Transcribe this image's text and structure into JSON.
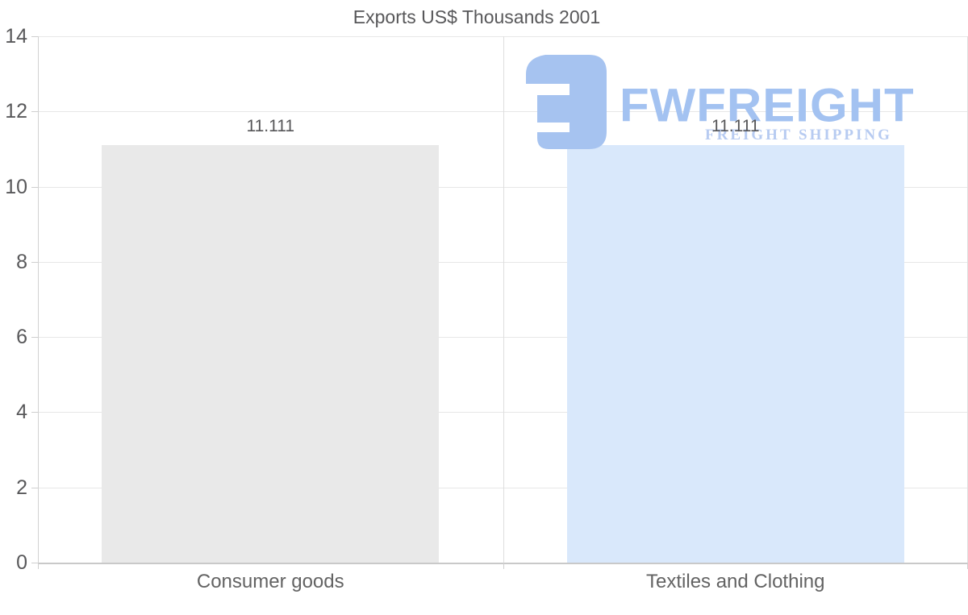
{
  "title": "Exports US$ Thousands 2001",
  "watermark": {
    "brand": "FWFREIGHT",
    "tagline": "FREIGHT SHIPPING",
    "brand_color": "#a3c2f1",
    "tagline_color": "#b7cbf1",
    "icon_color": "#a6c3f0"
  },
  "chart_data": {
    "type": "bar",
    "title": "Exports US$ Thousands 2001",
    "categories": [
      "Consumer goods",
      "Textiles and Clothing"
    ],
    "values": [
      11.111,
      11.111
    ],
    "value_labels": [
      "11.111",
      "11.111"
    ],
    "bar_colors": [
      "#e9e9e9",
      "#d9e8fb"
    ],
    "xlabel": "",
    "ylabel": "",
    "ylim": [
      0,
      14
    ],
    "yticks": [
      0,
      2,
      4,
      6,
      8,
      10,
      12,
      14
    ],
    "grid": "horizontal",
    "legend": "none",
    "label_color": "#58585a",
    "grid_color": "#e7e7e7"
  }
}
